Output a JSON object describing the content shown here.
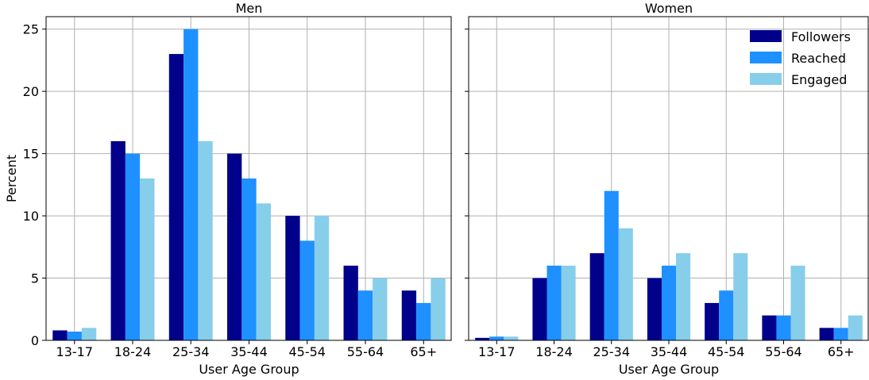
{
  "chart_data": {
    "type": "bar",
    "categories": [
      "13-17",
      "18-24",
      "25-34",
      "35-44",
      "45-54",
      "55-64",
      "65+"
    ],
    "ylabel": "Percent",
    "xlabel": "User Age Group",
    "ylim": [
      0,
      26
    ],
    "yticks": [
      0,
      5,
      10,
      15,
      20,
      25
    ],
    "grid": true,
    "shared_y": true,
    "legend": {
      "panel": "Women",
      "placement": "top-right"
    },
    "series_colors": {
      "Followers": "#00008b",
      "Reached": "#1e90ff",
      "Engaged": "#87ceeb"
    },
    "panels": [
      {
        "title": "Men",
        "series": [
          {
            "name": "Followers",
            "values": [
              0.8,
              16,
              23,
              15,
              10,
              6,
              4
            ]
          },
          {
            "name": "Reached",
            "values": [
              0.7,
              15,
              25,
              13,
              8,
              4,
              3
            ]
          },
          {
            "name": "Engaged",
            "values": [
              1,
              13,
              16,
              11,
              10,
              5,
              5
            ]
          }
        ]
      },
      {
        "title": "Women",
        "series": [
          {
            "name": "Followers",
            "values": [
              0.2,
              5,
              7,
              5,
              3,
              2,
              1
            ]
          },
          {
            "name": "Reached",
            "values": [
              0.3,
              6,
              12,
              6,
              4,
              2,
              1
            ]
          },
          {
            "name": "Engaged",
            "values": [
              0.3,
              6,
              9,
              7,
              7,
              6,
              2
            ]
          }
        ]
      }
    ]
  }
}
